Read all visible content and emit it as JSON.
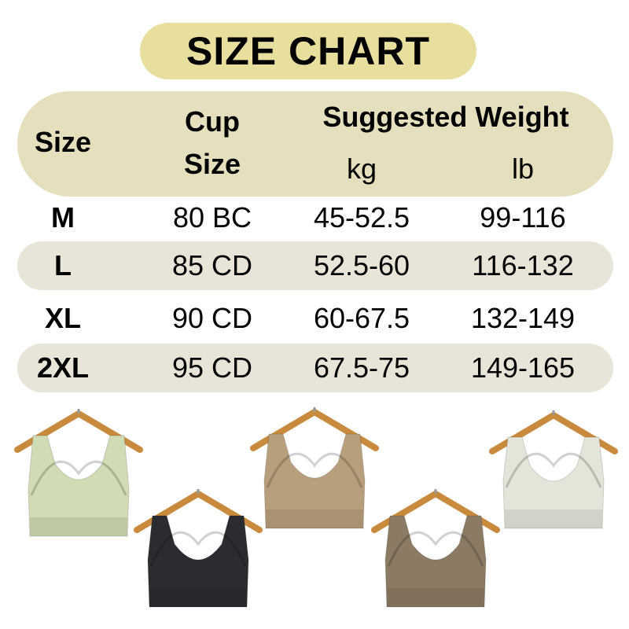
{
  "title": "SIZE CHART",
  "header": {
    "size": "Size",
    "cup_line1": "Cup",
    "cup_line2": "Size",
    "weight": "Suggested Weight",
    "kg": "kg",
    "lb": "lb"
  },
  "rows": [
    {
      "size": "M",
      "cup": "80 BC",
      "kg": "45-52.5",
      "lb": "99-116"
    },
    {
      "size": "L",
      "cup": "85 CD",
      "kg": "52.5-60",
      "lb": "116-132"
    },
    {
      "size": "XL",
      "cup": "90 CD",
      "kg": "60-67.5",
      "lb": "132-149"
    },
    {
      "size": "2XL",
      "cup": "95 CD",
      "kg": "67.5-75",
      "lb": "149-165"
    }
  ],
  "colors": {
    "title_bg": "#e8df9e",
    "header_bg": "#e6dfbd",
    "row_alt_bg": "#e8e5d8"
  },
  "products": [
    {
      "color_name": "light green",
      "hex": "#cfdcb4"
    },
    {
      "color_name": "black",
      "hex": "#2b2c32"
    },
    {
      "color_name": "tan",
      "hex": "#b89f7b"
    },
    {
      "color_name": "brown",
      "hex": "#8c7b64"
    },
    {
      "color_name": "off-white",
      "hex": "#e4e4d9"
    }
  ]
}
